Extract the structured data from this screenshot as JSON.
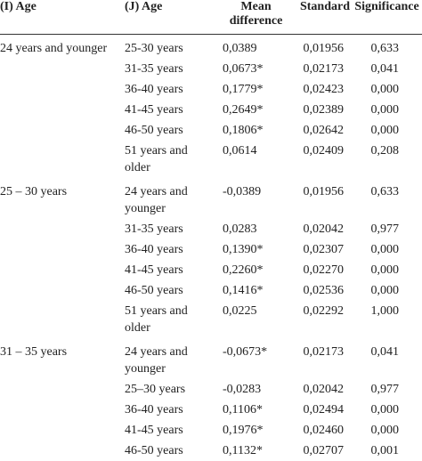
{
  "table": {
    "headers": [
      "(I) Age",
      "(J) Age",
      "Mean difference",
      "Standard",
      "Significance"
    ],
    "groups": [
      {
        "label": "24 years and younger",
        "rows": [
          [
            "25-30 years",
            "0,0389",
            "0,01956",
            "0,633"
          ],
          [
            "31-35 years",
            "0,0673*",
            "0,02173",
            "0,041"
          ],
          [
            "36-40 years",
            "0,1779*",
            "0,02423",
            "0,000"
          ],
          [
            "41-45 years",
            "0,2649*",
            "0,02389",
            "0,000"
          ],
          [
            "46-50 years",
            "0,1806*",
            "0,02642",
            "0,000"
          ],
          [
            "51 years and older",
            "0,0614",
            "0,02409",
            "0,208"
          ]
        ]
      },
      {
        "label": "25 – 30 years",
        "rows": [
          [
            "24 years and younger",
            "-0,0389",
            "0,01956",
            "0,633"
          ],
          [
            "31-35 years",
            "0,0283",
            "0,02042",
            "0,977"
          ],
          [
            "36-40 years",
            "0,1390*",
            "0,02307",
            "0,000"
          ],
          [
            "41-45 years",
            "0,2260*",
            "0,02270",
            "0,000"
          ],
          [
            "46-50 years",
            "0,1416*",
            "0,02536",
            "0,000"
          ],
          [
            "51 years and older",
            "0,0225",
            "0,02292",
            "1,000"
          ]
        ]
      },
      {
        "label": "31 – 35 years",
        "rows": [
          [
            "24 years and younger",
            "-0,0673*",
            "0,02173",
            "0,041"
          ],
          [
            "25–30 years",
            "-0,0283",
            "0,02042",
            "0,977"
          ],
          [
            "36-40 years",
            "0,1106*",
            "0,02494",
            "0,000"
          ],
          [
            "41-45 years",
            "0,1976*",
            "0,02460",
            "0,000"
          ],
          [
            "46-50 years",
            "0,1132*",
            "0,02707",
            "0,001"
          ]
        ]
      }
    ]
  }
}
